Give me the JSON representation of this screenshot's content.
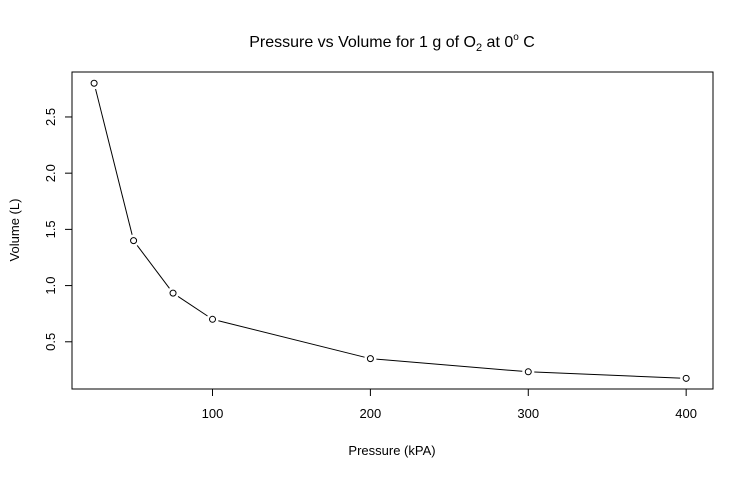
{
  "chart_data": {
    "type": "line",
    "title": "Pressure vs Volume for 1 g of O",
    "title_subscript": "2",
    "title_mid": " at 0",
    "title_superscript": "o",
    "title_end": " C",
    "xlabel": "Pressure (kPA)",
    "ylabel": "Volume (L)",
    "x": [
      25,
      50,
      75,
      100,
      200,
      300,
      400
    ],
    "y": [
      2.8,
      1.4,
      0.933,
      0.7,
      0.35,
      0.233,
      0.175
    ],
    "xticks": [
      100,
      200,
      300,
      400
    ],
    "yticks": [
      0.5,
      1.0,
      1.5,
      2.0,
      2.5
    ],
    "xtick_labels": [
      "100",
      "200",
      "300",
      "400"
    ],
    "ytick_labels": [
      "0.5",
      "1.0",
      "1.5",
      "2.0",
      "2.5"
    ],
    "xlim": [
      11,
      417
    ],
    "ylim": [
      0.08,
      2.9
    ],
    "markers": "open-circle",
    "grid": false,
    "line_color": "#000000"
  }
}
